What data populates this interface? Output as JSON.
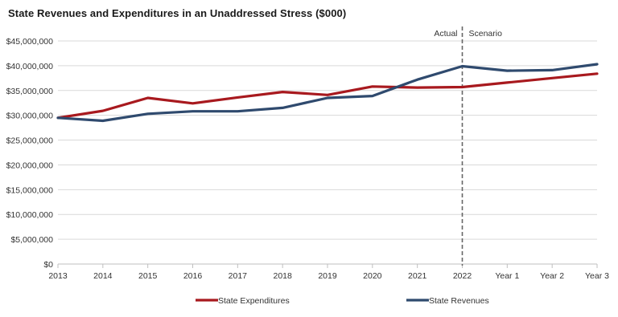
{
  "chart_data": {
    "type": "line",
    "title": "State Revenues and Expenditures in an Unaddressed Stress ($000)",
    "categories": [
      "2013",
      "2014",
      "2015",
      "2016",
      "2017",
      "2018",
      "2019",
      "2020",
      "2021",
      "2022",
      "Year 1",
      "Year 2",
      "Year 3"
    ],
    "y_tick_labels": [
      "$0",
      "$5,000,000",
      "$10,000,000",
      "$15,000,000",
      "$20,000,000",
      "$25,000,000",
      "$30,000,000",
      "$35,000,000",
      "$40,000,000",
      "$45,000,000"
    ],
    "ylim": [
      0,
      45000000
    ],
    "y_tick_step": 5000000,
    "series": [
      {
        "name": "State Expenditures",
        "color": "#a8191e",
        "values": [
          29500000,
          30900000,
          33500000,
          32400000,
          33600000,
          34700000,
          34100000,
          35800000,
          35600000,
          35700000,
          36600000,
          37500000,
          38400000
        ]
      },
      {
        "name": "State Revenues",
        "color": "#2f4a6e",
        "values": [
          29500000,
          28900000,
          30300000,
          30800000,
          30800000,
          31500000,
          33500000,
          33900000,
          37200000,
          39900000,
          39000000,
          39100000,
          40300000
        ]
      }
    ],
    "divider": {
      "at_category": "2022",
      "left_label": "Actual",
      "right_label": "Scenario",
      "style": "dashed",
      "color": "#666666"
    },
    "grid": true,
    "grid_color": "#d9d9d9",
    "axis_color": "#bfbfbf",
    "legend_position": "bottom"
  }
}
